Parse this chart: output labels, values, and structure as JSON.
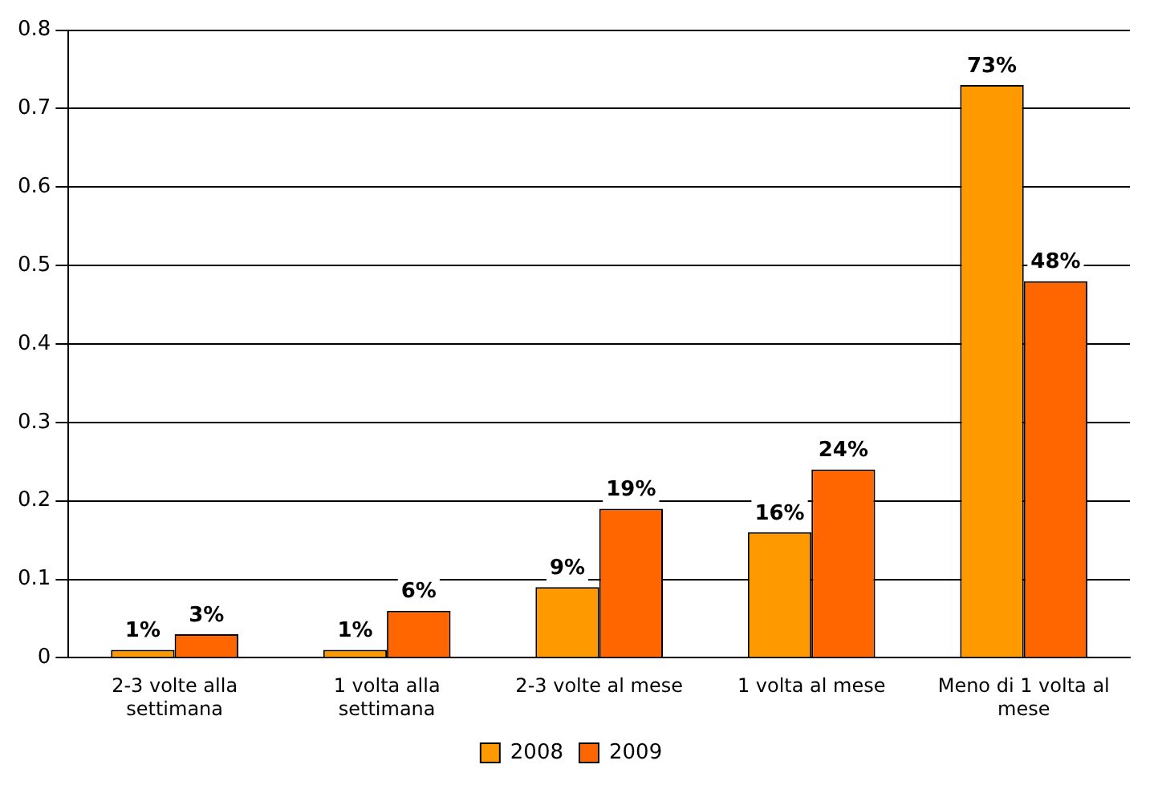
{
  "chart_data": {
    "type": "bar",
    "categories": [
      "2-3 volte alla settimana",
      "1 volta alla settimana",
      "2-3 volte al mese",
      "1 volta al mese",
      "Meno di 1 volta al mese"
    ],
    "series": [
      {
        "name": "2008",
        "color": "#ff9900",
        "values": [
          0.01,
          0.01,
          0.09,
          0.16,
          0.73
        ],
        "value_labels": [
          "1%",
          "1%",
          "9%",
          "16%",
          "73%"
        ]
      },
      {
        "name": "2009",
        "color": "#ff6600",
        "values": [
          0.03,
          0.06,
          0.19,
          0.24,
          0.48
        ],
        "value_labels": [
          "3%",
          "6%",
          "19%",
          "24%",
          "48%"
        ]
      }
    ],
    "ylim": [
      0,
      0.8
    ],
    "yticks": [
      0,
      0.1,
      0.2,
      0.3,
      0.4,
      0.5,
      0.6,
      0.7,
      0.8
    ],
    "grid": "y",
    "legend": "bottom"
  }
}
